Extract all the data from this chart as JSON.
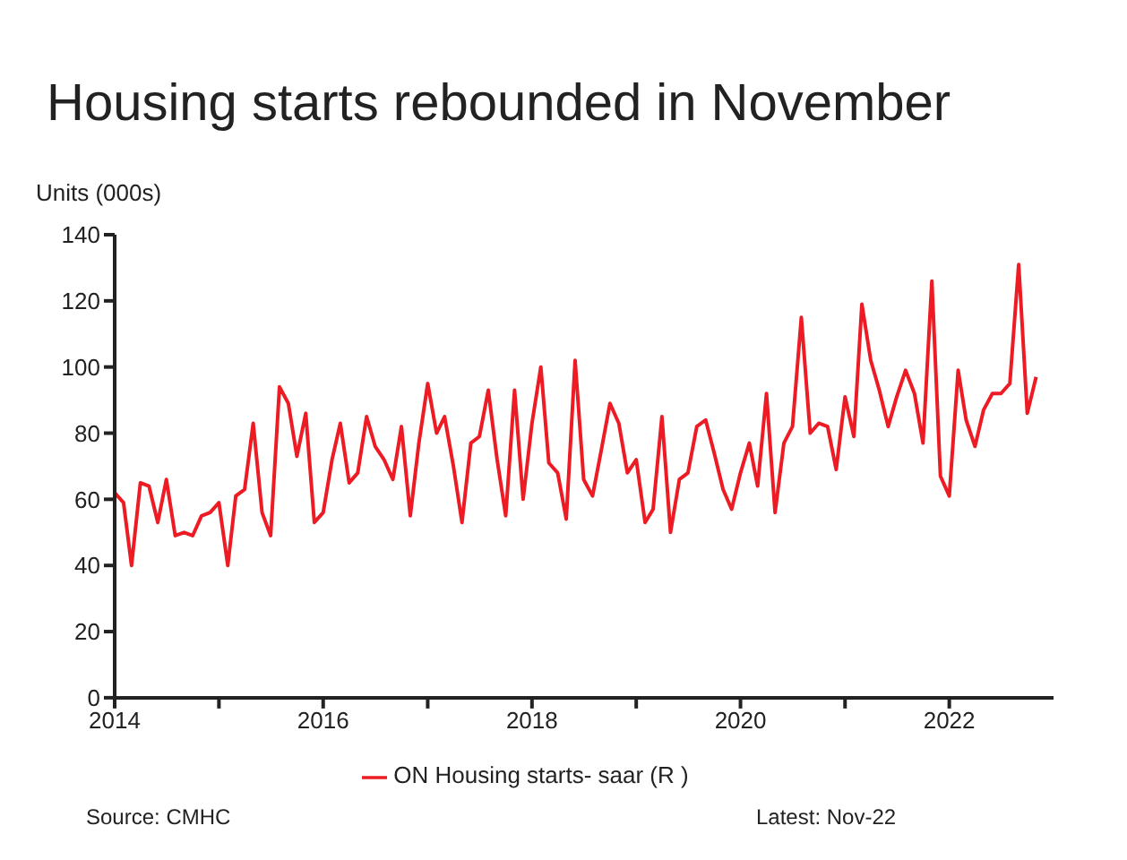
{
  "chart_data": {
    "type": "line",
    "title": "Housing starts rebounded in November",
    "ylabel": "Units (000s)",
    "x": [
      "2014-01",
      "2014-02",
      "2014-03",
      "2014-04",
      "2014-05",
      "2014-06",
      "2014-07",
      "2014-08",
      "2014-09",
      "2014-10",
      "2014-11",
      "2014-12",
      "2015-01",
      "2015-02",
      "2015-03",
      "2015-04",
      "2015-05",
      "2015-06",
      "2015-07",
      "2015-08",
      "2015-09",
      "2015-10",
      "2015-11",
      "2015-12",
      "2016-01",
      "2016-02",
      "2016-03",
      "2016-04",
      "2016-05",
      "2016-06",
      "2016-07",
      "2016-08",
      "2016-09",
      "2016-10",
      "2016-11",
      "2016-12",
      "2017-01",
      "2017-02",
      "2017-03",
      "2017-04",
      "2017-05",
      "2017-06",
      "2017-07",
      "2017-08",
      "2017-09",
      "2017-10",
      "2017-11",
      "2017-12",
      "2018-01",
      "2018-02",
      "2018-03",
      "2018-04",
      "2018-05",
      "2018-06",
      "2018-07",
      "2018-08",
      "2018-09",
      "2018-10",
      "2018-11",
      "2018-12",
      "2019-01",
      "2019-02",
      "2019-03",
      "2019-04",
      "2019-05",
      "2019-06",
      "2019-07",
      "2019-08",
      "2019-09",
      "2019-10",
      "2019-11",
      "2019-12",
      "2020-01",
      "2020-02",
      "2020-03",
      "2020-04",
      "2020-05",
      "2020-06",
      "2020-07",
      "2020-08",
      "2020-09",
      "2020-10",
      "2020-11",
      "2020-12",
      "2021-01",
      "2021-02",
      "2021-03",
      "2021-04",
      "2021-05",
      "2021-06",
      "2021-07",
      "2021-08",
      "2021-09",
      "2021-10",
      "2021-11",
      "2021-12",
      "2022-01",
      "2022-02",
      "2022-03",
      "2022-04",
      "2022-05",
      "2022-06",
      "2022-07",
      "2022-08",
      "2022-09",
      "2022-10",
      "2022-11"
    ],
    "series": [
      {
        "name": "ON Housing starts- saar (R )",
        "color": "#ed1c24",
        "values": [
          62,
          59,
          40,
          65,
          64,
          53,
          66,
          49,
          50,
          49,
          55,
          56,
          59,
          40,
          61,
          63,
          83,
          56,
          49,
          94,
          89,
          73,
          86,
          53,
          56,
          72,
          83,
          65,
          68,
          85,
          76,
          72,
          66,
          82,
          55,
          77,
          95,
          80,
          85,
          70,
          53,
          77,
          79,
          93,
          72,
          55,
          93,
          60,
          83,
          100,
          71,
          68,
          54,
          102,
          66,
          61,
          75,
          89,
          83,
          68,
          72,
          53,
          57,
          85,
          50,
          66,
          68,
          82,
          84,
          74,
          63,
          57,
          68,
          77,
          64,
          92,
          56,
          77,
          82,
          115,
          80,
          83,
          82,
          69,
          91,
          79,
          119,
          102,
          93,
          82,
          91,
          99,
          92,
          77,
          126,
          67,
          61,
          99,
          84,
          76,
          87,
          92,
          92,
          95,
          131,
          86,
          97
        ]
      }
    ],
    "xlim": [
      "2014-01",
      "2023-01"
    ],
    "xticks": [
      {
        "value": "2014",
        "label": "2014"
      },
      {
        "value": "2015",
        "label": null
      },
      {
        "value": "2016",
        "label": "2016"
      },
      {
        "value": "2017",
        "label": null
      },
      {
        "value": "2018",
        "label": "2018"
      },
      {
        "value": "2019",
        "label": null
      },
      {
        "value": "2020",
        "label": "2020"
      },
      {
        "value": "2021",
        "label": null
      },
      {
        "value": "2022",
        "label": "2022"
      }
    ],
    "ylim": [
      0,
      140
    ],
    "yticks": [
      0,
      20,
      40,
      60,
      80,
      100,
      120,
      140
    ],
    "grid": false,
    "legend": "bottom",
    "marker": "none",
    "line_style": "solid",
    "annotations": [
      "Source: CMHC",
      "Latest: Nov-22"
    ]
  }
}
